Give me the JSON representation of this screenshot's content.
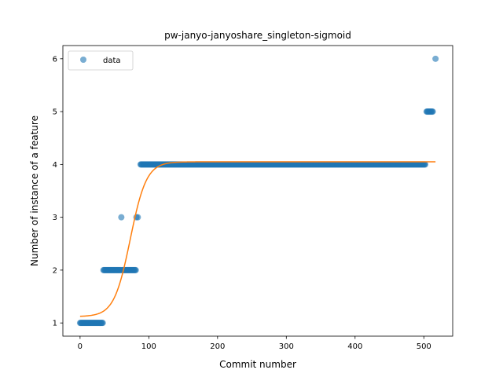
{
  "chart_data": {
    "type": "scatter",
    "title": "pw-janyo-janyoshare_singleton-sigmoid",
    "xlabel": "Commit number",
    "ylabel": "Number of instance of a feature",
    "xlim": [
      -25,
      542
    ],
    "ylim": [
      0.75,
      6.25
    ],
    "xticks": [
      0,
      100,
      200,
      300,
      400,
      500
    ],
    "yticks": [
      1,
      2,
      3,
      4,
      5,
      6
    ],
    "grid": false,
    "legend": {
      "entries": [
        "data"
      ],
      "placement": "upper left"
    },
    "colors": {
      "data": "#1f77b4",
      "fit": "#ff7f0e"
    },
    "series": [
      {
        "name": "data",
        "kind": "scatter",
        "segments": [
          {
            "x_from": 0,
            "x_to": 33,
            "y": 1
          },
          {
            "x_from": 34,
            "x_to": 59,
            "y": 2
          },
          {
            "x_from": 61,
            "x_to": 81,
            "y": 2
          },
          {
            "x_from": 88,
            "x_to": 502,
            "y": 4
          },
          {
            "x_from": 504,
            "x_to": 513,
            "y": 5
          }
        ],
        "points": [
          {
            "x": 60,
            "y": 3
          },
          {
            "x": 82,
            "y": 3
          },
          {
            "x": 84,
            "y": 3
          },
          {
            "x": 517,
            "y": 6
          }
        ]
      },
      {
        "kind": "line",
        "function": "sigmoid",
        "params": {
          "lower": 1.12,
          "upper": 4.05,
          "midpoint": 73,
          "slope": 0.085
        },
        "x_range": [
          0,
          517
        ]
      }
    ]
  }
}
